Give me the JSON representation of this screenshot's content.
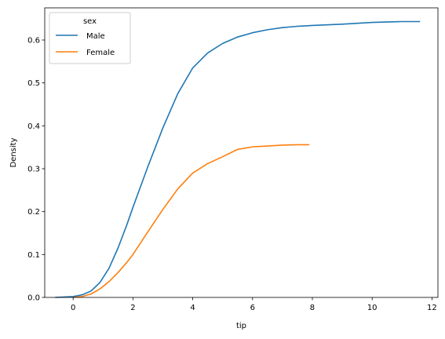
{
  "chart_data": {
    "type": "line",
    "xlabel": "tip",
    "ylabel": "Density",
    "xlim": [
      -0.95,
      12.2
    ],
    "ylim": [
      0,
      0.675
    ],
    "x_ticks": [
      0,
      2,
      4,
      6,
      8,
      10,
      12
    ],
    "y_ticks": [
      0.0,
      0.1,
      0.2,
      0.3,
      0.4,
      0.5,
      0.6
    ],
    "legend": {
      "title": "sex",
      "placement": "top-left"
    },
    "series": [
      {
        "name": "Male",
        "color": "#1f77b4",
        "x": [
          -0.6,
          0.0,
          0.3,
          0.6,
          0.9,
          1.2,
          1.5,
          1.8,
          2.0,
          2.5,
          3.0,
          3.5,
          4.0,
          4.5,
          5.0,
          5.5,
          6.0,
          6.5,
          7.0,
          7.5,
          8.0,
          9.0,
          10.0,
          11.0,
          11.6
        ],
        "y": [
          0.0,
          0.002,
          0.006,
          0.015,
          0.035,
          0.068,
          0.115,
          0.17,
          0.21,
          0.305,
          0.395,
          0.475,
          0.535,
          0.57,
          0.592,
          0.607,
          0.617,
          0.624,
          0.629,
          0.632,
          0.634,
          0.637,
          0.641,
          0.643,
          0.643
        ]
      },
      {
        "name": "Female",
        "color": "#ff7f0e",
        "x": [
          0.0,
          0.3,
          0.6,
          0.9,
          1.2,
          1.5,
          1.8,
          2.0,
          2.5,
          3.0,
          3.5,
          4.0,
          4.5,
          5.0,
          5.5,
          6.0,
          6.5,
          7.0,
          7.5,
          7.9
        ],
        "y": [
          0.0,
          0.002,
          0.008,
          0.02,
          0.037,
          0.058,
          0.082,
          0.1,
          0.153,
          0.205,
          0.253,
          0.29,
          0.312,
          0.328,
          0.345,
          0.351,
          0.353,
          0.355,
          0.356,
          0.356
        ]
      }
    ]
  }
}
